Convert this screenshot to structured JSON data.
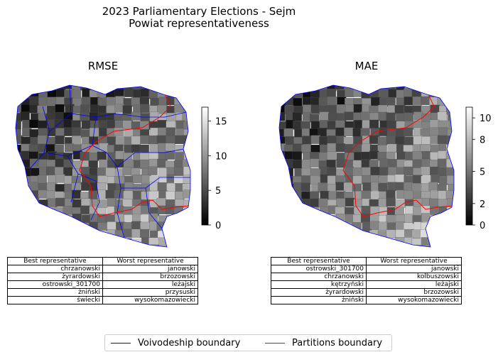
{
  "figure": {
    "title": "2023 Parliamentary Elections - Sejm",
    "subtitle": "Powiat representativeness"
  },
  "maps": [
    {
      "title": "RMSE",
      "colorbar_ticks": [
        "0",
        "5",
        "10",
        "15"
      ],
      "colorbar_range": [
        0,
        17
      ],
      "table": {
        "headers": [
          "Best representative",
          "Worst representative"
        ],
        "rows": [
          [
            "chrzanowski",
            "janowski"
          ],
          [
            "żyrardowski",
            "brzozowski"
          ],
          [
            "ostrowski_301700",
            "leżajski"
          ],
          [
            "żniński",
            "przysuski"
          ],
          [
            "świecki",
            "wysokomazowiecki"
          ]
        ]
      }
    },
    {
      "title": "MAE",
      "colorbar_ticks": [
        "0",
        "2",
        "5",
        "8",
        "10"
      ],
      "colorbar_range": [
        0,
        11
      ],
      "table": {
        "headers": [
          "Best representative",
          "Worst representative"
        ],
        "rows": [
          [
            "ostrowski_301700",
            "janowski"
          ],
          [
            "chrzanowski",
            "kolbuszowski"
          ],
          [
            "kętrzyński",
            "leżajski"
          ],
          [
            "żyrardowski",
            "brzozowski"
          ],
          [
            "żniński",
            "wysokomazowiecki"
          ]
        ]
      }
    }
  ],
  "legend": {
    "voivodeship_label": "Voivodeship boundary",
    "partitions_label": "Partitions boundary",
    "voivodeship_color": "#0000ff",
    "partitions_color": "#ff0000"
  },
  "colormap": "greys (black = low, white = high)"
}
